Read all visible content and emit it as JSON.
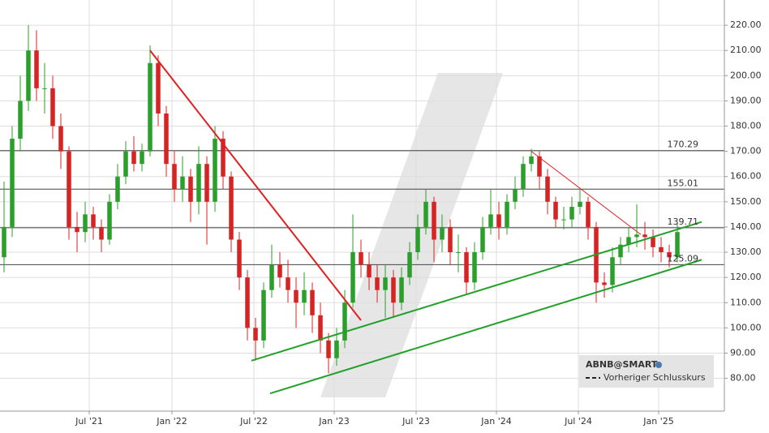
{
  "chart_data": {
    "type": "candlestick",
    "up_color": "#2c9e2c",
    "down_color": "#d42424",
    "open": [
      128,
      140,
      175,
      190,
      210,
      195,
      195,
      180,
      170,
      140,
      138,
      145,
      140,
      135,
      150,
      160,
      170,
      165,
      170,
      205,
      185,
      165,
      155,
      160,
      150,
      165,
      150,
      175,
      160,
      135,
      120,
      100,
      95,
      115,
      125,
      120,
      115,
      110,
      115,
      105,
      95,
      88,
      95,
      110,
      130,
      125,
      120,
      115,
      120,
      110,
      120,
      130,
      140,
      150,
      135,
      140,
      130,
      130,
      118,
      130,
      140,
      145,
      140,
      150,
      155,
      165,
      168,
      160,
      150,
      143,
      143,
      148,
      150,
      140,
      118,
      117,
      128,
      133,
      136,
      137,
      136,
      132,
      130,
      128
    ],
    "high": [
      158,
      180,
      200,
      220,
      218,
      205,
      200,
      185,
      172,
      146,
      150,
      148,
      143,
      153,
      165,
      174,
      176,
      173,
      212,
      208,
      188,
      170,
      168,
      163,
      172,
      168,
      180,
      178,
      162,
      138,
      123,
      104,
      118,
      133,
      130,
      127,
      120,
      122,
      118,
      110,
      98,
      100,
      115,
      145,
      135,
      130,
      125,
      125,
      123,
      124,
      134,
      145,
      155,
      152,
      145,
      143,
      137,
      132,
      134,
      144,
      155,
      150,
      153,
      160,
      168,
      171,
      170,
      163,
      152,
      148,
      152,
      155,
      152,
      142,
      122,
      132,
      136,
      140,
      149,
      142,
      139,
      136,
      133,
      142
    ],
    "low": [
      122,
      136,
      170,
      186,
      190,
      185,
      175,
      163,
      135,
      130,
      134,
      135,
      130,
      133,
      147,
      157,
      162,
      162,
      168,
      180,
      160,
      150,
      150,
      142,
      145,
      133,
      146,
      155,
      130,
      115,
      95,
      87,
      92,
      112,
      116,
      110,
      100,
      105,
      98,
      90,
      82,
      85,
      92,
      108,
      120,
      115,
      110,
      104,
      104,
      107,
      117,
      127,
      137,
      126,
      130,
      125,
      122,
      113,
      115,
      127,
      137,
      135,
      137,
      147,
      152,
      162,
      155,
      145,
      140,
      139,
      140,
      145,
      135,
      110,
      112,
      114,
      125,
      130,
      132,
      131,
      128,
      126,
      124,
      126
    ],
    "close": [
      140,
      175,
      190,
      210,
      195,
      195,
      180,
      170,
      140,
      138,
      145,
      140,
      135,
      150,
      160,
      170,
      165,
      170,
      205,
      185,
      165,
      155,
      160,
      150,
      165,
      150,
      175,
      160,
      135,
      120,
      100,
      95,
      115,
      125,
      120,
      115,
      110,
      115,
      105,
      95,
      88,
      95,
      110,
      130,
      125,
      120,
      115,
      120,
      110,
      120,
      130,
      140,
      150,
      135,
      140,
      130,
      130,
      118,
      130,
      140,
      145,
      140,
      150,
      155,
      165,
      168,
      160,
      150,
      143,
      143,
      148,
      150,
      140,
      118,
      117,
      128,
      133,
      136,
      137,
      136,
      132,
      130,
      128,
      138
    ],
    "xlim": [
      -0.5,
      88.8
    ],
    "xticks": [
      {
        "value": 10.5,
        "label": "Jul '21"
      },
      {
        "value": 20.7,
        "label": "Jan '22"
      },
      {
        "value": 30.8,
        "label": "Jul '22"
      },
      {
        "value": 40.7,
        "label": "Jan '23"
      },
      {
        "value": 50.8,
        "label": "Jul '23"
      },
      {
        "value": 60.7,
        "label": "Jan '24"
      },
      {
        "value": 70.8,
        "label": "Jul '24"
      },
      {
        "value": 80.7,
        "label": "Jan '25"
      }
    ],
    "ylim": [
      67,
      230
    ],
    "yticks": [
      {
        "value": 80,
        "label": "80.00"
      },
      {
        "value": 90,
        "label": "90.00"
      },
      {
        "value": 100,
        "label": "100.00"
      },
      {
        "value": 110,
        "label": "110.00"
      },
      {
        "value": 120,
        "label": "120.00"
      },
      {
        "value": 130,
        "label": "130.00"
      },
      {
        "value": 140,
        "label": "140.00"
      },
      {
        "value": 150,
        "label": "150.00"
      },
      {
        "value": 160,
        "label": "160.00"
      },
      {
        "value": 170,
        "label": "170.00"
      },
      {
        "value": 180,
        "label": "180.00"
      },
      {
        "value": 190,
        "label": "190.00"
      },
      {
        "value": 200,
        "label": "200.00"
      },
      {
        "value": 210,
        "label": "210.00"
      },
      {
        "value": 220,
        "label": "220.00"
      }
    ],
    "grid": true,
    "levels": [
      170.29,
      155.01,
      139.71,
      125.09
    ],
    "level_color": "#444444",
    "trendlines": [
      {
        "color": "#e02020",
        "width": 2,
        "x": [
          18,
          44
        ],
        "y": [
          210,
          103
        ]
      },
      {
        "color": "#e02020",
        "width": 1,
        "x": [
          65,
          78.5
        ],
        "y": [
          170,
          137
        ]
      },
      {
        "color": "#22a02a",
        "width": 2,
        "x": [
          30.5,
          86
        ],
        "y": [
          87,
          142
        ]
      },
      {
        "color": "#22a02a",
        "width": 2,
        "x": [
          32.8,
          86
        ],
        "y": [
          74,
          127
        ]
      }
    ],
    "legend": {
      "title": "ABNB@SMART",
      "items": [
        "Vorheriger Schlusskurs"
      ]
    }
  }
}
